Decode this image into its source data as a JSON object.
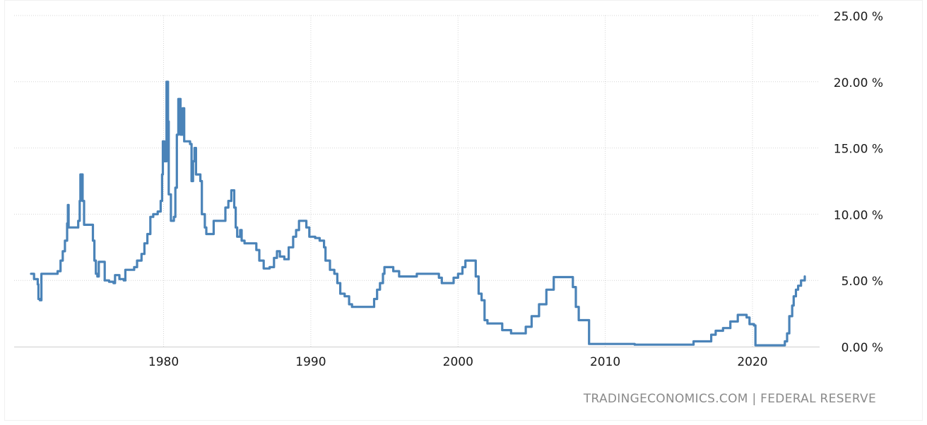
{
  "source": "TRADINGECONOMICS.COM | FEDERAL RESERVE",
  "chart_data": {
    "type": "line",
    "title": "",
    "xlabel": "",
    "ylabel": "",
    "xlim": [
      1971.0,
      2023.6
    ],
    "ylim": [
      0,
      25
    ],
    "grid": true,
    "line_color": "#4a83b8",
    "x_ticks": [
      {
        "value": 1980,
        "label": "1980"
      },
      {
        "value": 1990,
        "label": "1990"
      },
      {
        "value": 2000,
        "label": "2000"
      },
      {
        "value": 2010,
        "label": "2010"
      },
      {
        "value": 2020,
        "label": "2020"
      }
    ],
    "y_ticks": [
      {
        "value": 0,
        "label": "0.00 %"
      },
      {
        "value": 5,
        "label": "5.00 %"
      },
      {
        "value": 10,
        "label": "10.00 %"
      },
      {
        "value": 15,
        "label": "15.00 %"
      },
      {
        "value": 20,
        "label": "20.00 %"
      },
      {
        "value": 25,
        "label": "25.00 %"
      }
    ],
    "series": [
      {
        "values": [
          [
            1971.0,
            5.5
          ],
          [
            1971.2,
            5.1
          ],
          [
            1971.35,
            5.1
          ],
          [
            1971.45,
            4.7
          ],
          [
            1971.5,
            3.6
          ],
          [
            1971.6,
            3.5
          ],
          [
            1971.7,
            5.5
          ],
          [
            1972.0,
            5.5
          ],
          [
            1972.4,
            5.5
          ],
          [
            1972.6,
            5.5
          ],
          [
            1972.8,
            5.7
          ],
          [
            1973.0,
            6.5
          ],
          [
            1973.15,
            7.2
          ],
          [
            1973.3,
            8.0
          ],
          [
            1973.45,
            9.3
          ],
          [
            1973.5,
            10.7
          ],
          [
            1973.55,
            9.0
          ],
          [
            1974.0,
            9.0
          ],
          [
            1974.2,
            9.5
          ],
          [
            1974.3,
            11.0
          ],
          [
            1974.35,
            13.0
          ],
          [
            1974.45,
            13.0
          ],
          [
            1974.5,
            11.0
          ],
          [
            1974.6,
            9.2
          ],
          [
            1975.0,
            9.2
          ],
          [
            1975.2,
            8.0
          ],
          [
            1975.3,
            6.5
          ],
          [
            1975.4,
            5.5
          ],
          [
            1975.5,
            5.3
          ],
          [
            1975.6,
            6.4
          ],
          [
            1975.9,
            6.4
          ],
          [
            1976.0,
            5.0
          ],
          [
            1976.3,
            4.9
          ],
          [
            1976.6,
            4.8
          ],
          [
            1976.7,
            5.4
          ],
          [
            1976.9,
            5.4
          ],
          [
            1977.0,
            5.1
          ],
          [
            1977.3,
            5.0
          ],
          [
            1977.4,
            5.8
          ],
          [
            1977.8,
            5.8
          ],
          [
            1978.0,
            6.0
          ],
          [
            1978.2,
            6.5
          ],
          [
            1978.5,
            7.0
          ],
          [
            1978.7,
            7.8
          ],
          [
            1978.9,
            8.5
          ],
          [
            1979.1,
            9.8
          ],
          [
            1979.3,
            10.0
          ],
          [
            1979.6,
            10.2
          ],
          [
            1979.8,
            11.0
          ],
          [
            1979.9,
            13.0
          ],
          [
            1979.95,
            15.5
          ],
          [
            1980.05,
            14.0
          ],
          [
            1980.15,
            14.0
          ],
          [
            1980.2,
            20.0
          ],
          [
            1980.3,
            17.0
          ],
          [
            1980.35,
            11.5
          ],
          [
            1980.5,
            9.5
          ],
          [
            1980.7,
            9.8
          ],
          [
            1980.8,
            12.0
          ],
          [
            1980.9,
            16.0
          ],
          [
            1981.0,
            18.7
          ],
          [
            1981.15,
            16.0
          ],
          [
            1981.3,
            18.0
          ],
          [
            1981.4,
            15.5
          ],
          [
            1981.7,
            15.5
          ],
          [
            1981.8,
            15.3
          ],
          [
            1981.9,
            12.5
          ],
          [
            1982.0,
            14.0
          ],
          [
            1982.1,
            15.0
          ],
          [
            1982.2,
            13.0
          ],
          [
            1982.5,
            12.5
          ],
          [
            1982.6,
            10.0
          ],
          [
            1982.8,
            9.0
          ],
          [
            1982.9,
            8.5
          ],
          [
            1983.3,
            8.5
          ],
          [
            1983.4,
            9.5
          ],
          [
            1984.0,
            9.5
          ],
          [
            1984.2,
            10.5
          ],
          [
            1984.4,
            11.0
          ],
          [
            1984.6,
            11.8
          ],
          [
            1984.8,
            10.5
          ],
          [
            1984.9,
            9.0
          ],
          [
            1985.0,
            8.3
          ],
          [
            1985.2,
            8.8
          ],
          [
            1985.3,
            8.0
          ],
          [
            1985.5,
            7.8
          ],
          [
            1986.0,
            7.8
          ],
          [
            1986.3,
            7.3
          ],
          [
            1986.5,
            6.5
          ],
          [
            1986.8,
            5.9
          ],
          [
            1987.2,
            6.0
          ],
          [
            1987.5,
            6.7
          ],
          [
            1987.7,
            7.2
          ],
          [
            1987.9,
            6.8
          ],
          [
            1988.2,
            6.6
          ],
          [
            1988.5,
            7.5
          ],
          [
            1988.8,
            8.3
          ],
          [
            1989.0,
            8.8
          ],
          [
            1989.2,
            9.5
          ],
          [
            1989.5,
            9.5
          ],
          [
            1989.7,
            9.0
          ],
          [
            1989.9,
            8.3
          ],
          [
            1990.3,
            8.2
          ],
          [
            1990.6,
            8.0
          ],
          [
            1990.9,
            7.5
          ],
          [
            1991.0,
            6.5
          ],
          [
            1991.3,
            5.8
          ],
          [
            1991.6,
            5.5
          ],
          [
            1991.8,
            4.8
          ],
          [
            1992.0,
            4.0
          ],
          [
            1992.3,
            3.8
          ],
          [
            1992.6,
            3.2
          ],
          [
            1992.8,
            3.0
          ],
          [
            1993.5,
            3.0
          ],
          [
            1994.0,
            3.0
          ],
          [
            1994.3,
            3.6
          ],
          [
            1994.5,
            4.3
          ],
          [
            1994.7,
            4.8
          ],
          [
            1994.9,
            5.5
          ],
          [
            1995.0,
            6.0
          ],
          [
            1995.4,
            6.0
          ],
          [
            1995.6,
            5.7
          ],
          [
            1996.0,
            5.3
          ],
          [
            1997.0,
            5.3
          ],
          [
            1997.2,
            5.5
          ],
          [
            1998.5,
            5.5
          ],
          [
            1998.7,
            5.2
          ],
          [
            1998.9,
            4.8
          ],
          [
            1999.5,
            4.8
          ],
          [
            1999.7,
            5.2
          ],
          [
            2000.0,
            5.5
          ],
          [
            2000.3,
            6.0
          ],
          [
            2000.5,
            6.5
          ],
          [
            2001.0,
            6.5
          ],
          [
            2001.2,
            5.3
          ],
          [
            2001.4,
            4.0
          ],
          [
            2001.6,
            3.5
          ],
          [
            2001.8,
            2.0
          ],
          [
            2002.0,
            1.75
          ],
          [
            2002.9,
            1.75
          ],
          [
            2003.0,
            1.25
          ],
          [
            2003.5,
            1.25
          ],
          [
            2003.6,
            1.0
          ],
          [
            2004.4,
            1.0
          ],
          [
            2004.6,
            1.5
          ],
          [
            2005.0,
            2.3
          ],
          [
            2005.5,
            3.2
          ],
          [
            2006.0,
            4.3
          ],
          [
            2006.5,
            5.25
          ],
          [
            2007.6,
            5.25
          ],
          [
            2007.8,
            4.5
          ],
          [
            2008.0,
            3.0
          ],
          [
            2008.2,
            2.0
          ],
          [
            2008.7,
            2.0
          ],
          [
            2008.9,
            0.2
          ],
          [
            2012.0,
            0.15
          ],
          [
            2015.9,
            0.15
          ],
          [
            2016.0,
            0.4
          ],
          [
            2016.9,
            0.4
          ],
          [
            2017.2,
            0.9
          ],
          [
            2017.5,
            1.2
          ],
          [
            2018.0,
            1.4
          ],
          [
            2018.5,
            1.9
          ],
          [
            2019.0,
            2.4
          ],
          [
            2019.5,
            2.4
          ],
          [
            2019.6,
            2.2
          ],
          [
            2019.8,
            1.7
          ],
          [
            2020.1,
            1.6
          ],
          [
            2020.2,
            0.1
          ],
          [
            2021.5,
            0.1
          ],
          [
            2022.0,
            0.1
          ],
          [
            2022.2,
            0.4
          ],
          [
            2022.35,
            1.0
          ],
          [
            2022.5,
            2.3
          ],
          [
            2022.7,
            3.1
          ],
          [
            2022.8,
            3.8
          ],
          [
            2022.95,
            4.3
          ],
          [
            2023.1,
            4.6
          ],
          [
            2023.3,
            5.0
          ],
          [
            2023.55,
            5.3
          ]
        ]
      }
    ]
  }
}
